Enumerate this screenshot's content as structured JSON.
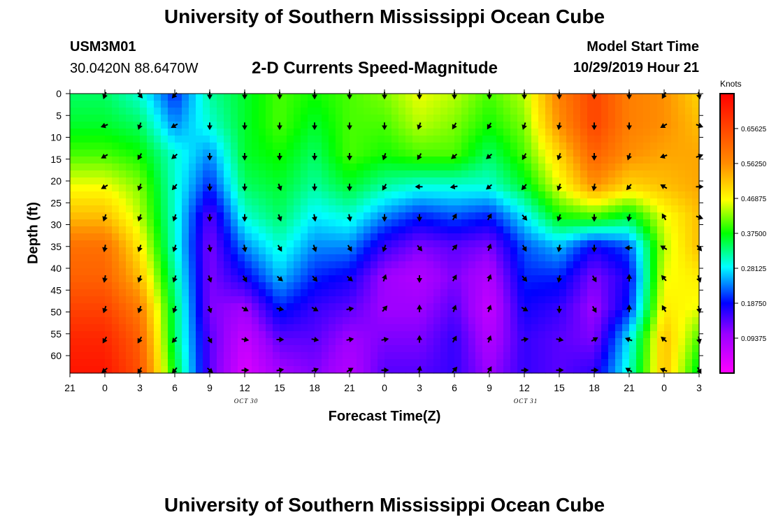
{
  "page": {
    "title": "University of Southern Mississippi Ocean Cube",
    "station_id": "USM3M01",
    "station_coords": "30.0420N 88.6470W",
    "subtitle": "2-D Currents Speed-Magnitude",
    "model_start_label": "Model Start Time",
    "model_start_value": "10/29/2019 Hour 21",
    "footer_title": "University of Southern Mississippi Ocean Cube"
  },
  "chart_data": {
    "type": "heatmap",
    "title": "2-D Currents Speed-Magnitude",
    "xlabel": "Forecast Time(Z)",
    "ylabel": "Depth (ft)",
    "x_tick_labels": [
      "21",
      "0",
      "3",
      "6",
      "9",
      "12",
      "15",
      "18",
      "21",
      "0",
      "3",
      "6",
      "9",
      "12",
      "15",
      "18",
      "21",
      "0",
      "3"
    ],
    "x_hours_range": [
      0,
      54
    ],
    "date_labels": [
      {
        "text": "OCT 30",
        "hour": 15
      },
      {
        "text": "OCT 31",
        "hour": 39
      }
    ],
    "y_ticks": [
      0,
      5,
      10,
      15,
      20,
      25,
      30,
      35,
      40,
      45,
      50,
      55,
      60
    ],
    "ylim": [
      0,
      64
    ],
    "colorbar": {
      "unit": "Knots",
      "range": [
        0.0,
        0.75
      ],
      "ticks": [
        "0.09375",
        "0.18750",
        "0.28125",
        "0.37500",
        "0.46875",
        "0.56250",
        "0.65625"
      ],
      "tick_values": [
        0.09375,
        0.1875,
        0.28125,
        0.375,
        0.46875,
        0.5625,
        0.65625
      ]
    },
    "arrow_times": [
      3,
      6,
      9,
      12,
      15,
      18,
      21,
      24,
      27,
      30,
      33,
      36,
      39,
      42,
      45,
      48,
      51,
      54
    ],
    "arrow_depths": [
      0,
      7,
      14,
      21,
      28,
      35,
      42,
      49,
      56,
      63
    ],
    "arrow_note": "current direction arrows at 3-hour, 7-ft sampling",
    "speed_samples_note": "speed field in knots sampled on 18 times x 10 depths",
    "speed": [
      [
        0.34,
        0.36,
        0.4,
        0.46,
        0.52,
        0.6,
        0.62,
        0.66,
        0.7,
        0.72
      ],
      [
        0.3,
        0.34,
        0.38,
        0.42,
        0.44,
        0.48,
        0.52,
        0.58,
        0.62,
        0.64
      ],
      [
        0.2,
        0.24,
        0.3,
        0.3,
        0.3,
        0.3,
        0.32,
        0.34,
        0.34,
        0.36
      ],
      [
        0.32,
        0.3,
        0.24,
        0.2,
        0.14,
        0.12,
        0.12,
        0.12,
        0.14,
        0.14
      ],
      [
        0.36,
        0.36,
        0.36,
        0.34,
        0.3,
        0.24,
        0.18,
        0.1,
        0.06,
        0.04
      ],
      [
        0.4,
        0.4,
        0.38,
        0.36,
        0.34,
        0.3,
        0.26,
        0.2,
        0.14,
        0.1
      ],
      [
        0.38,
        0.36,
        0.34,
        0.32,
        0.28,
        0.24,
        0.2,
        0.16,
        0.14,
        0.12
      ],
      [
        0.4,
        0.4,
        0.4,
        0.36,
        0.3,
        0.24,
        0.18,
        0.14,
        0.1,
        0.08
      ],
      [
        0.42,
        0.4,
        0.38,
        0.32,
        0.24,
        0.16,
        0.1,
        0.1,
        0.12,
        0.14
      ],
      [
        0.46,
        0.44,
        0.4,
        0.3,
        0.2,
        0.12,
        0.08,
        0.1,
        0.12,
        0.14
      ],
      [
        0.44,
        0.42,
        0.4,
        0.3,
        0.22,
        0.14,
        0.12,
        0.14,
        0.16,
        0.16
      ],
      [
        0.4,
        0.38,
        0.34,
        0.3,
        0.2,
        0.12,
        0.08,
        0.06,
        0.08,
        0.1
      ],
      [
        0.44,
        0.42,
        0.4,
        0.36,
        0.28,
        0.22,
        0.2,
        0.18,
        0.16,
        0.16
      ],
      [
        0.58,
        0.56,
        0.5,
        0.46,
        0.38,
        0.26,
        0.2,
        0.16,
        0.14,
        0.14
      ],
      [
        0.66,
        0.66,
        0.62,
        0.56,
        0.4,
        0.18,
        0.12,
        0.1,
        0.12,
        0.16
      ],
      [
        0.58,
        0.58,
        0.56,
        0.5,
        0.36,
        0.22,
        0.18,
        0.2,
        0.28,
        0.3
      ],
      [
        0.56,
        0.56,
        0.54,
        0.52,
        0.46,
        0.44,
        0.46,
        0.48,
        0.52,
        0.52
      ],
      [
        0.5,
        0.52,
        0.54,
        0.54,
        0.52,
        0.52,
        0.48,
        0.46,
        0.4,
        0.36
      ]
    ],
    "directions_deg": [
      [
        200,
        250,
        240,
        240,
        200,
        190,
        190,
        200,
        210,
        230
      ],
      [
        140,
        200,
        210,
        200,
        200,
        200,
        200,
        200,
        210,
        210
      ],
      [
        220,
        240,
        230,
        220,
        200,
        200,
        200,
        200,
        220,
        220
      ],
      [
        180,
        180,
        180,
        180,
        180,
        170,
        160,
        160,
        150,
        130
      ],
      [
        180,
        180,
        180,
        180,
        180,
        170,
        150,
        120,
        100,
        90
      ],
      [
        180,
        180,
        180,
        160,
        160,
        150,
        130,
        100,
        90,
        80
      ],
      [
        180,
        180,
        180,
        180,
        170,
        160,
        140,
        120,
        100,
        70
      ],
      [
        180,
        180,
        180,
        180,
        170,
        150,
        130,
        80,
        80,
        60
      ],
      [
        180,
        180,
        200,
        210,
        180,
        200,
        20,
        40,
        80,
        90
      ],
      [
        180,
        200,
        210,
        270,
        180,
        140,
        180,
        0,
        0,
        10
      ],
      [
        180,
        210,
        230,
        260,
        30,
        40,
        30,
        20,
        30,
        40
      ],
      [
        180,
        210,
        230,
        230,
        30,
        20,
        20,
        20,
        20,
        30
      ],
      [
        180,
        200,
        210,
        220,
        140,
        150,
        140,
        120,
        80,
        90
      ],
      [
        180,
        190,
        200,
        200,
        200,
        190,
        190,
        180,
        100,
        90
      ],
      [
        180,
        180,
        180,
        190,
        180,
        180,
        150,
        150,
        60,
        90
      ],
      [
        180,
        180,
        200,
        220,
        190,
        270,
        0,
        0,
        290,
        300
      ],
      [
        210,
        240,
        250,
        300,
        330,
        300,
        320,
        330,
        310,
        290
      ],
      [
        170,
        110,
        70,
        90,
        110,
        140,
        160,
        170,
        170,
        150
      ]
    ]
  }
}
